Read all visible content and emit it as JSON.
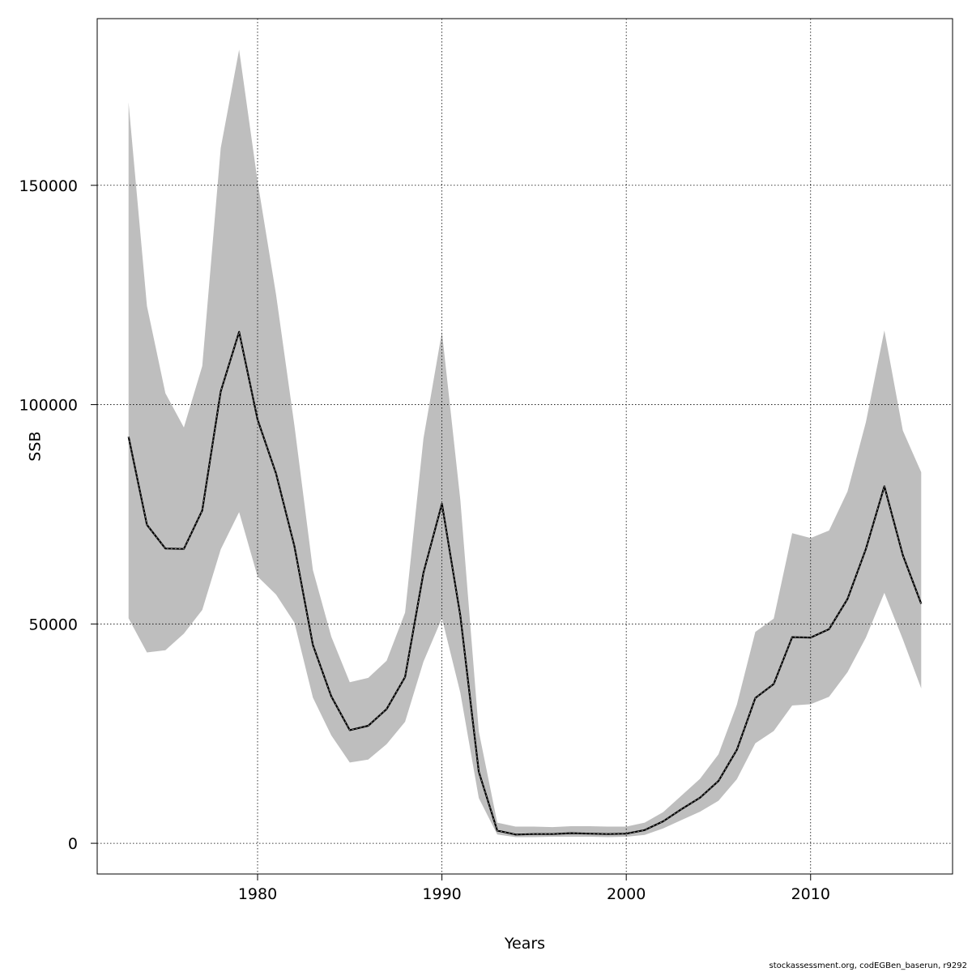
{
  "chart_data": {
    "type": "line",
    "title": "",
    "xlabel": "Years",
    "ylabel": "SSB",
    "xlim": [
      1971.3,
      2017.7
    ],
    "ylim": [
      -7000,
      188000
    ],
    "x_ticks": [
      1980,
      1990,
      2000,
      2010
    ],
    "y_ticks": [
      0,
      50000,
      100000,
      150000
    ],
    "grid": true,
    "colors": {
      "band": "#bebebe",
      "line": "#000000",
      "grid": "#000000"
    },
    "series": [
      {
        "x": [
          1973,
          1974,
          1975,
          1976,
          1977,
          1978,
          1979,
          1980,
          1981,
          1982,
          1983,
          1984,
          1985,
          1986,
          1987,
          1988,
          1989,
          1990,
          1991,
          1992,
          1993,
          1994,
          1995,
          1996,
          1997,
          1998,
          1999,
          2000,
          2001,
          2002,
          2003,
          2004,
          2005,
          2006,
          2007,
          2008,
          2009,
          2010,
          2011,
          2012,
          2013,
          2014,
          2015,
          2016
        ],
        "y": [
          92700,
          72600,
          67200,
          67100,
          75900,
          103000,
          116600,
          96600,
          84300,
          67700,
          45200,
          33500,
          25800,
          26800,
          30600,
          37900,
          61700,
          77400,
          51900,
          16300,
          2900,
          2000,
          2100,
          2100,
          2300,
          2200,
          2100,
          2200,
          3000,
          5000,
          7800,
          10400,
          14200,
          21300,
          33100,
          36300,
          47000,
          46900,
          48800,
          55700,
          67100,
          81400,
          65700,
          54600
        ]
      }
    ],
    "band": {
      "upper": [
        168900,
        122500,
        102600,
        94800,
        108800,
        158500,
        180900,
        150900,
        125100,
        95200,
        62300,
        47100,
        36700,
        37700,
        41600,
        52600,
        92300,
        116600,
        78300,
        25500,
        4700,
        3800,
        3800,
        3700,
        3900,
        3900,
        3800,
        3800,
        4700,
        7100,
        10900,
        14700,
        20300,
        31600,
        48200,
        51200,
        70700,
        69600,
        71300,
        80200,
        96000,
        116900,
        94100,
        84600
      ],
      "lower": [
        51300,
        43500,
        44000,
        47800,
        53200,
        67000,
        75500,
        60800,
        56700,
        50300,
        33200,
        24600,
        18400,
        19100,
        22600,
        27700,
        41400,
        51300,
        34300,
        10300,
        2000,
        1400,
        1400,
        1500,
        1500,
        1500,
        1400,
        1500,
        1900,
        3400,
        5300,
        7200,
        9700,
        14600,
        22800,
        25600,
        31400,
        31700,
        33400,
        39000,
        46900,
        57100,
        46500,
        35300
      ]
    }
  },
  "footer": "stockassessment.org, codEGBen_baserun, r9292"
}
